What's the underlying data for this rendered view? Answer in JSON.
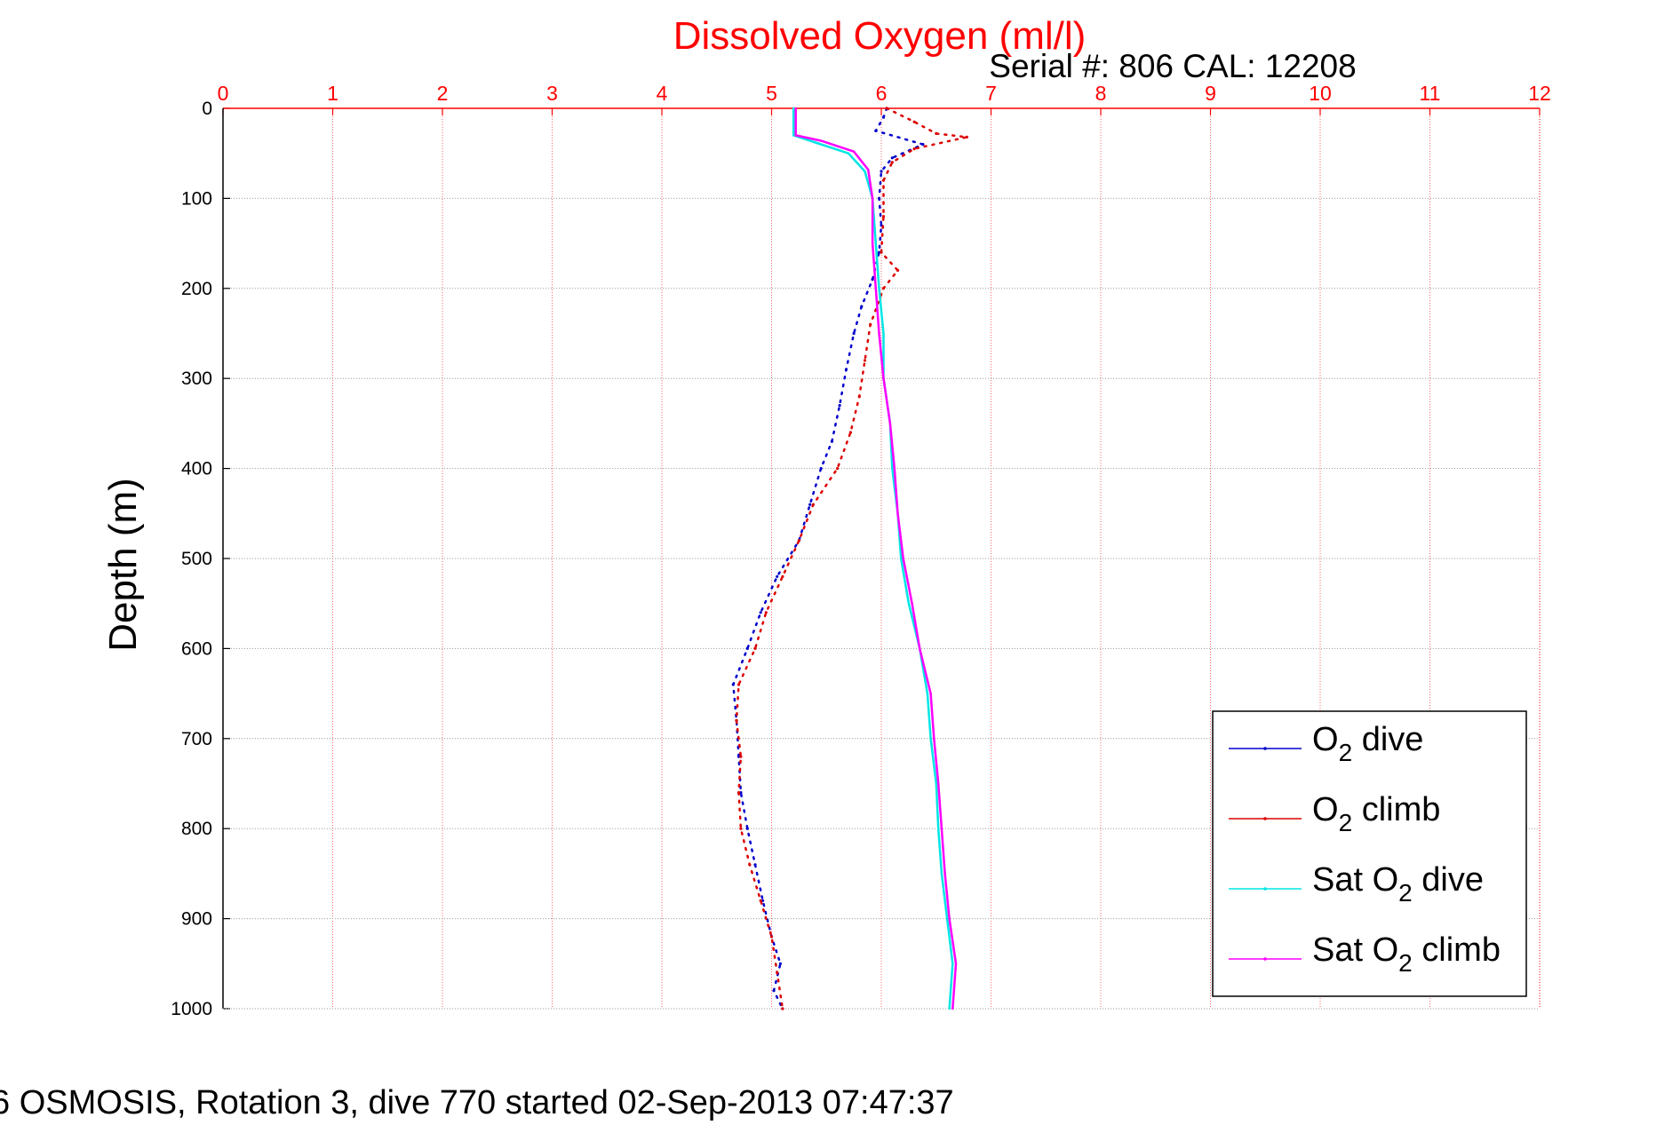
{
  "chart_data": {
    "type": "scatter",
    "title": "Dissolved Oxygen (ml/l)",
    "subtitle": "Serial #: 806  CAL: 12208",
    "footer": "6 OSMOSIS, Rotation 3, dive 770 started 02-Sep-2013 07:47:37",
    "xlabel": "",
    "ylabel": "Depth (m)",
    "xlim": [
      0,
      12
    ],
    "ylim": [
      0,
      1000
    ],
    "y_reversed": true,
    "x_ticks": [
      "0",
      "1",
      "2",
      "3",
      "4",
      "5",
      "6",
      "7",
      "8",
      "9",
      "10",
      "11",
      "12"
    ],
    "y_ticks": [
      "0",
      "100",
      "200",
      "300",
      "400",
      "500",
      "600",
      "700",
      "800",
      "900",
      "1000"
    ],
    "x_axis_position": "top",
    "grid": true,
    "legend_position": "bottom-right",
    "colors": {
      "title": "#ff0000",
      "x_axis": "#ff0000",
      "o2_dive": "#0000cc",
      "o2_climb": "#dd0000",
      "sat_dive": "#00e5e5",
      "sat_climb": "#ff00ff"
    },
    "series": [
      {
        "name": "O2 dive",
        "legend": {
          "pre": "O",
          "sub": "2",
          "post": " dive"
        },
        "color": "#0000cc",
        "style": "dotted",
        "points": [
          [
            6.05,
            0
          ],
          [
            6.02,
            10
          ],
          [
            5.95,
            25
          ],
          [
            6.38,
            40
          ],
          [
            6.1,
            55
          ],
          [
            6.0,
            70
          ],
          [
            5.98,
            100
          ],
          [
            6.0,
            130
          ],
          [
            5.98,
            160
          ],
          [
            5.92,
            190
          ],
          [
            5.82,
            220
          ],
          [
            5.75,
            250
          ],
          [
            5.68,
            290
          ],
          [
            5.62,
            330
          ],
          [
            5.55,
            370
          ],
          [
            5.45,
            400
          ],
          [
            5.35,
            440
          ],
          [
            5.25,
            480
          ],
          [
            5.05,
            520
          ],
          [
            4.9,
            560
          ],
          [
            4.78,
            600
          ],
          [
            4.65,
            640
          ],
          [
            4.68,
            680
          ],
          [
            4.7,
            720
          ],
          [
            4.72,
            760
          ],
          [
            4.78,
            800
          ],
          [
            4.85,
            840
          ],
          [
            4.92,
            880
          ],
          [
            5.0,
            920
          ],
          [
            5.08,
            950
          ],
          [
            5.02,
            980
          ],
          [
            5.1,
            1000
          ]
        ]
      },
      {
        "name": "O2 climb",
        "legend": {
          "pre": "O",
          "sub": "2",
          "post": " climb"
        },
        "color": "#dd0000",
        "style": "dotted",
        "points": [
          [
            6.05,
            0
          ],
          [
            6.3,
            15
          ],
          [
            6.5,
            28
          ],
          [
            6.78,
            32
          ],
          [
            6.3,
            45
          ],
          [
            6.1,
            60
          ],
          [
            6.02,
            80
          ],
          [
            6.02,
            120
          ],
          [
            6.0,
            160
          ],
          [
            6.15,
            180
          ],
          [
            6.02,
            200
          ],
          [
            5.9,
            240
          ],
          [
            5.85,
            280
          ],
          [
            5.8,
            320
          ],
          [
            5.72,
            360
          ],
          [
            5.6,
            400
          ],
          [
            5.38,
            440
          ],
          [
            5.25,
            480
          ],
          [
            5.1,
            520
          ],
          [
            4.95,
            560
          ],
          [
            4.85,
            600
          ],
          [
            4.7,
            640
          ],
          [
            4.68,
            680
          ],
          [
            4.72,
            720
          ],
          [
            4.7,
            760
          ],
          [
            4.72,
            800
          ],
          [
            4.8,
            840
          ],
          [
            4.9,
            880
          ],
          [
            5.0,
            920
          ],
          [
            5.05,
            960
          ],
          [
            5.1,
            1000
          ]
        ]
      },
      {
        "name": "Sat O2 dive",
        "legend": {
          "pre": "Sat O",
          "sub": "2",
          "post": " dive"
        },
        "color": "#00e5e5",
        "style": "solid",
        "points": [
          [
            5.2,
            0
          ],
          [
            5.2,
            30
          ],
          [
            5.4,
            38
          ],
          [
            5.7,
            50
          ],
          [
            5.85,
            70
          ],
          [
            5.92,
            100
          ],
          [
            5.95,
            150
          ],
          [
            5.98,
            200
          ],
          [
            6.02,
            250
          ],
          [
            6.02,
            300
          ],
          [
            6.08,
            350
          ],
          [
            6.1,
            400
          ],
          [
            6.15,
            450
          ],
          [
            6.18,
            500
          ],
          [
            6.25,
            550
          ],
          [
            6.35,
            600
          ],
          [
            6.42,
            650
          ],
          [
            6.45,
            700
          ],
          [
            6.5,
            750
          ],
          [
            6.52,
            800
          ],
          [
            6.55,
            850
          ],
          [
            6.6,
            900
          ],
          [
            6.65,
            950
          ],
          [
            6.62,
            1000
          ]
        ]
      },
      {
        "name": "Sat O2 climb",
        "legend": {
          "pre": "Sat O",
          "sub": "2",
          "post": " climb"
        },
        "color": "#ff00ff",
        "style": "solid",
        "points": [
          [
            5.22,
            0
          ],
          [
            5.22,
            30
          ],
          [
            5.45,
            36
          ],
          [
            5.75,
            48
          ],
          [
            5.88,
            68
          ],
          [
            5.92,
            100
          ],
          [
            5.92,
            150
          ],
          [
            5.95,
            200
          ],
          [
            5.98,
            250
          ],
          [
            6.02,
            300
          ],
          [
            6.08,
            350
          ],
          [
            6.12,
            400
          ],
          [
            6.15,
            450
          ],
          [
            6.2,
            500
          ],
          [
            6.28,
            550
          ],
          [
            6.35,
            600
          ],
          [
            6.45,
            650
          ],
          [
            6.48,
            700
          ],
          [
            6.52,
            750
          ],
          [
            6.55,
            800
          ],
          [
            6.58,
            850
          ],
          [
            6.62,
            900
          ],
          [
            6.68,
            950
          ],
          [
            6.65,
            1000
          ]
        ]
      }
    ]
  }
}
